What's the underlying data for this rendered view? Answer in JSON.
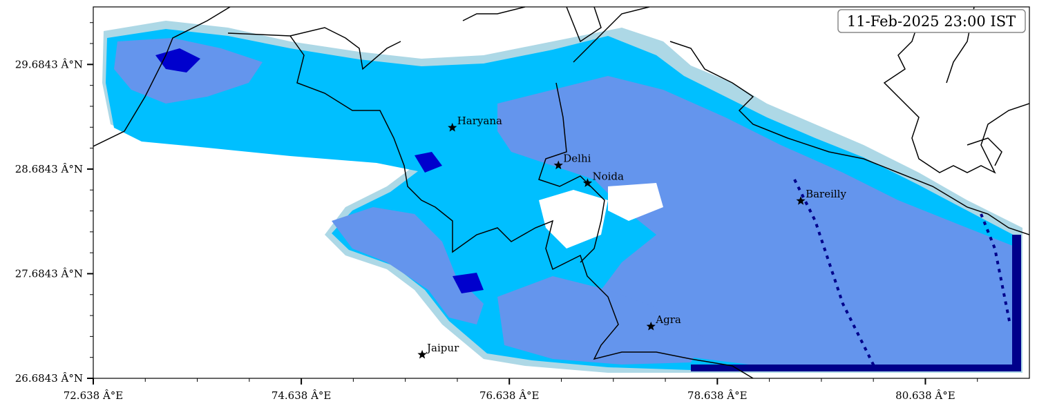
{
  "timestamp": "11-Feb-2025 23:00 IST",
  "x_axis": {
    "range": [
      72.638,
      81.638
    ],
    "tick_labels": [
      "72.638 Â°E",
      "74.638 Â°E",
      "76.638 Â°E",
      "78.638 Â°E",
      "80.638 Â°E"
    ],
    "tick_values": [
      72.638,
      74.638,
      76.638,
      78.638,
      80.638
    ]
  },
  "y_axis": {
    "range": [
      26.6843,
      30.2343
    ],
    "tick_labels": [
      "29.6843 Â°N",
      "28.6843 Â°N",
      "27.6843 Â°N",
      "26.6843 Â°N"
    ],
    "tick_values": [
      29.6843,
      28.6843,
      27.6843,
      26.6843
    ]
  },
  "cities": [
    {
      "name": "Haryana",
      "lon": 76.09,
      "lat": 29.08
    },
    {
      "name": "Delhi",
      "lon": 77.11,
      "lat": 28.72
    },
    {
      "name": "Noida",
      "lon": 77.39,
      "lat": 28.55
    },
    {
      "name": "Bareilly",
      "lon": 79.44,
      "lat": 28.38
    },
    {
      "name": "Agra",
      "lon": 78.0,
      "lat": 27.18
    },
    {
      "name": "Jaipur",
      "lon": 75.8,
      "lat": 26.91
    }
  ],
  "colors": {
    "level1": "#add8e6",
    "level2": "#00bfff",
    "level3": "#6495ed",
    "level4": "#0000cd",
    "level5": "#00008b",
    "border": "#000000"
  }
}
